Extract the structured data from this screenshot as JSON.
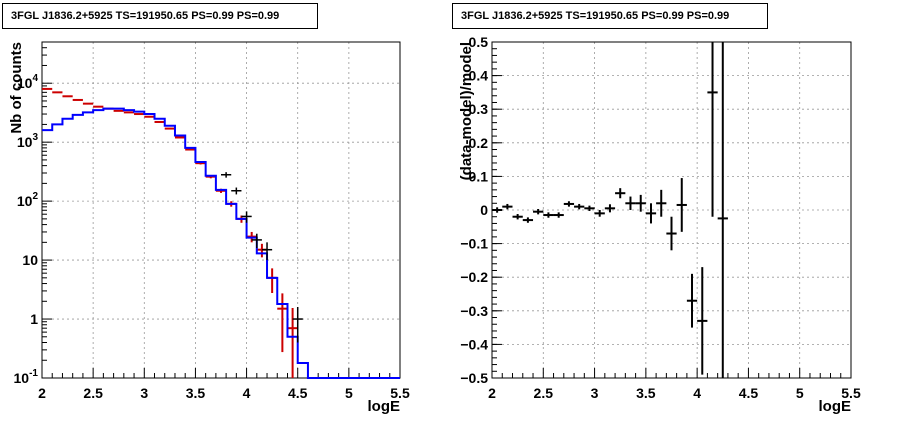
{
  "chart_data": [
    {
      "type": "histogram",
      "title": "3FGL J1836.2+5925 TS=191950.65 PS=0.99 PS=0.99",
      "xlabel": "logE",
      "ylabel": "Nb of counts",
      "xlim": [
        2,
        5.5
      ],
      "ylim": [
        0.1,
        50000
      ],
      "yscale": "log",
      "grid": true,
      "x_ticks": [
        "2",
        "2.5",
        "3",
        "3.5",
        "4",
        "4.5",
        "5",
        "5.5"
      ],
      "y_ticks": [
        {
          "value": 0.1,
          "label": "10^-1"
        },
        {
          "value": 1,
          "label": "1"
        },
        {
          "value": 10,
          "label": "10"
        },
        {
          "value": 100,
          "label": "10^2"
        },
        {
          "value": 1000,
          "label": "10^3"
        },
        {
          "value": 10000,
          "label": "10^4"
        }
      ],
      "bin_edges": [
        2.0,
        2.1,
        2.2,
        2.3,
        2.4,
        2.5,
        2.6,
        2.7,
        2.8,
        2.9,
        3.0,
        3.1,
        3.2,
        3.3,
        3.4,
        3.5,
        3.6,
        3.7,
        3.8,
        3.9,
        4.0,
        4.1,
        4.2,
        4.3,
        4.4,
        4.5,
        4.6,
        4.7,
        4.8,
        4.9,
        5.0,
        5.1,
        5.2,
        5.3,
        5.4,
        5.5
      ],
      "series": [
        {
          "color": "#cc0000",
          "style": "error-bars",
          "values": [
            8000,
            7000,
            6000,
            5200,
            4500,
            4000,
            3700,
            3400,
            3200,
            3000,
            2700,
            2200,
            1700,
            1200,
            750,
            440,
            260,
            150,
            90,
            50,
            25,
            15,
            5,
            1.5,
            0.7,
            null,
            null,
            null,
            null,
            null,
            null,
            null,
            null,
            null,
            null
          ]
        },
        {
          "color": "#0000ff",
          "style": "step",
          "values": [
            1600,
            2000,
            2500,
            2900,
            3200,
            3500,
            3700,
            3700,
            3500,
            3300,
            3000,
            2500,
            1900,
            1300,
            800,
            460,
            270,
            155,
            90,
            50,
            24,
            13,
            5,
            1.8,
            0.5,
            0.18,
            0.1,
            0.1,
            0.1,
            0.1,
            0.1,
            0.1,
            0.1,
            0.1,
            0.1
          ]
        },
        {
          "color": "#000000",
          "style": "data-points",
          "points": [
            {
              "x": 3.8,
              "y": 280,
              "err": 30
            },
            {
              "x": 3.9,
              "y": 150,
              "err": 20
            },
            {
              "x": 4.0,
              "y": 55,
              "err": 12
            },
            {
              "x": 4.1,
              "y": 22,
              "err": 6
            },
            {
              "x": 4.2,
              "y": 15,
              "err": 5
            },
            {
              "x": 4.5,
              "y": 1,
              "err": 0.6
            }
          ]
        }
      ]
    },
    {
      "type": "scatter",
      "title": "3FGL J1836.2+5925 TS=191950.65 PS=0.99 PS=0.99",
      "xlabel": "logE",
      "ylabel": "(data-model)/model",
      "xlim": [
        2,
        5.5
      ],
      "ylim": [
        -0.5,
        0.5
      ],
      "grid": true,
      "x_ticks": [
        "2",
        "2.5",
        "3",
        "3.5",
        "4",
        "4.5",
        "5",
        "5.5"
      ],
      "y_ticks": [
        "-0.5",
        "-0.4",
        "-0.3",
        "-0.2",
        "-0.1",
        "0",
        "0.1",
        "0.2",
        "0.3",
        "0.4",
        "0.5"
      ],
      "series": [
        {
          "color": "#000000",
          "points": [
            {
              "x": 2.05,
              "y": 0.0,
              "err": 0.008
            },
            {
              "x": 2.15,
              "y": 0.01,
              "err": 0.008
            },
            {
              "x": 2.25,
              "y": -0.02,
              "err": 0.008
            },
            {
              "x": 2.35,
              "y": -0.03,
              "err": 0.008
            },
            {
              "x": 2.45,
              "y": -0.005,
              "err": 0.008
            },
            {
              "x": 2.55,
              "y": -0.015,
              "err": 0.008
            },
            {
              "x": 2.65,
              "y": -0.015,
              "err": 0.008
            },
            {
              "x": 2.75,
              "y": 0.018,
              "err": 0.008
            },
            {
              "x": 2.85,
              "y": 0.01,
              "err": 0.008
            },
            {
              "x": 2.95,
              "y": 0.005,
              "err": 0.008
            },
            {
              "x": 3.05,
              "y": -0.01,
              "err": 0.01
            },
            {
              "x": 3.15,
              "y": 0.005,
              "err": 0.012
            },
            {
              "x": 3.25,
              "y": 0.05,
              "err": 0.015
            },
            {
              "x": 3.35,
              "y": 0.02,
              "err": 0.02
            },
            {
              "x": 3.45,
              "y": 0.02,
              "err": 0.025
            },
            {
              "x": 3.55,
              "y": -0.01,
              "err": 0.03
            },
            {
              "x": 3.65,
              "y": 0.02,
              "err": 0.04
            },
            {
              "x": 3.75,
              "y": -0.07,
              "err": 0.05
            },
            {
              "x": 3.85,
              "y": 0.015,
              "err": 0.08
            },
            {
              "x": 3.95,
              "y": -0.27,
              "err": 0.08
            },
            {
              "x": 4.05,
              "y": -0.33,
              "err": 0.16
            },
            {
              "x": 4.15,
              "y": 0.35,
              "err": 0.37
            },
            {
              "x": 4.25,
              "y": -0.025,
              "err": 0.55
            }
          ]
        }
      ]
    }
  ]
}
